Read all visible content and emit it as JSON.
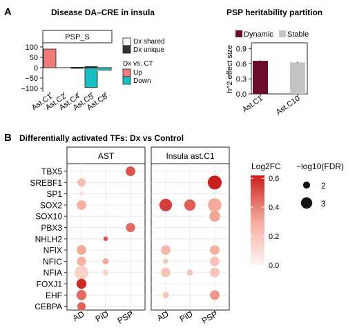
{
  "panel_labels": [
    "A",
    "B"
  ],
  "chart_data": [
    {
      "type": "bar",
      "title": "Disease DA–CRE in insula",
      "strip": "PSP_S",
      "categories": [
        "Ast.C1",
        "Ast.C2",
        "Ast.C4",
        "Ast.C5",
        "Ast.C8"
      ],
      "series": [
        {
          "name": "Up",
          "values": [
            90,
            0,
            2,
            5,
            0
          ]
        },
        {
          "name": "Down",
          "values": [
            0,
            0,
            -3,
            -95,
            -12
          ]
        }
      ],
      "ylim": [
        -110,
        110
      ],
      "yticks": [
        100,
        50,
        0,
        -50,
        -100
      ],
      "ytick_labels": [
        "100",
        "50",
        "0",
        "−50",
        "−100"
      ],
      "legend_alpha": {
        "items": [
          "Dx shared",
          "Dx unique"
        ]
      },
      "legend_fill": {
        "title": "Dx vs. CT",
        "items": [
          "Up",
          "Down"
        ]
      },
      "colors": {
        "Up": "#f07b78",
        "Down": "#17bfc4",
        "dark": "#333333"
      }
    },
    {
      "type": "bar",
      "title": "PSP heritability partition",
      "categories": [
        "Ast.C1",
        "Ast.C10"
      ],
      "series": [
        {
          "name": "Dynamic",
          "values": [
            0.66,
            0.0
          ]
        },
        {
          "name": "Stable",
          "values": [
            0.0,
            0.63
          ]
        }
      ],
      "errors": [
        0.015,
        0.015
      ],
      "ylabel": "h^2 effect size",
      "yticks": [
        0.0,
        0.3,
        0.6,
        0.9
      ],
      "ytick_labels": [
        "0.0",
        "0.3",
        "0.6",
        "0.9"
      ],
      "ylim": [
        0,
        1.02
      ],
      "legend": [
        "Dynamic",
        "Stable"
      ],
      "colors": {
        "Dynamic": "#6b0d2a",
        "Stable": "#c4c4c4"
      }
    },
    {
      "type": "scatter",
      "title": "Differentially activated TFs: Dx vs Control",
      "facets": [
        "AST",
        "Insula ast.C1"
      ],
      "x_categories": [
        "AD",
        "PiD",
        "PSP"
      ],
      "y_categories": [
        "TBX5",
        "SREBF1",
        "SP1",
        "SOX2",
        "SOX10",
        "PBX3",
        "NHLH2",
        "NFIX",
        "NFIC",
        "NFIA",
        "FOXJ1",
        "EHF",
        "CEBPA"
      ],
      "color_legend": {
        "title": "Log2FC",
        "ticks": [
          0.6,
          0.4,
          0.2,
          0.0
        ],
        "tick_labels": [
          "0.6",
          "0.4",
          "0.2",
          "0.0"
        ],
        "range": [
          0,
          0.62
        ]
      },
      "size_legend": {
        "title": "−log10(FDR)",
        "items": [
          2,
          3
        ]
      },
      "points": [
        {
          "facet": "AST",
          "x": "PSP",
          "y": "TBX5",
          "log2fc": 0.5,
          "nlog10fdr": 2.6
        },
        {
          "facet": "AST",
          "x": "AD",
          "y": "SREBF1",
          "log2fc": 0.22,
          "nlog10fdr": 2.3
        },
        {
          "facet": "AST",
          "x": "AD",
          "y": "SP1",
          "log2fc": 0.08,
          "nlog10fdr": 1.4
        },
        {
          "facet": "AST",
          "x": "AD",
          "y": "SOX2",
          "log2fc": 0.28,
          "nlog10fdr": 2.6
        },
        {
          "facet": "AST",
          "x": "PSP",
          "y": "PBX3",
          "log2fc": 0.45,
          "nlog10fdr": 2.5
        },
        {
          "facet": "AST",
          "x": "PiD",
          "y": "NHLH2",
          "log2fc": 0.5,
          "nlog10fdr": 1.4
        },
        {
          "facet": "AST",
          "x": "AD",
          "y": "NFIX",
          "log2fc": 0.3,
          "nlog10fdr": 2.6
        },
        {
          "facet": "AST",
          "x": "AD",
          "y": "NFIC",
          "log2fc": 0.28,
          "nlog10fdr": 2.5
        },
        {
          "facet": "AST",
          "x": "PiD",
          "y": "NFIC",
          "log2fc": 0.3,
          "nlog10fdr": 1.8
        },
        {
          "facet": "AST",
          "x": "AD",
          "y": "NFIA",
          "log2fc": 0.15,
          "nlog10fdr": 3.6
        },
        {
          "facet": "AST",
          "x": "PiD",
          "y": "NFIA",
          "log2fc": 0.15,
          "nlog10fdr": 1.7
        },
        {
          "facet": "AST",
          "x": "AD",
          "y": "FOXJ1",
          "log2fc": 0.6,
          "nlog10fdr": 2.7
        },
        {
          "facet": "AST",
          "x": "AD",
          "y": "EHF",
          "log2fc": 0.45,
          "nlog10fdr": 2.7
        },
        {
          "facet": "AST",
          "x": "AD",
          "y": "CEBPA",
          "log2fc": 0.47,
          "nlog10fdr": 2.3
        },
        {
          "facet": "Insula ast.C1",
          "x": "PSP",
          "y": "SREBF1",
          "log2fc": 0.62,
          "nlog10fdr": 3.6
        },
        {
          "facet": "Insula ast.C1",
          "x": "AD",
          "y": "SOX2",
          "log2fc": 0.55,
          "nlog10fdr": 3.3
        },
        {
          "facet": "Insula ast.C1",
          "x": "PiD",
          "y": "SOX2",
          "log2fc": 0.48,
          "nlog10fdr": 3.0
        },
        {
          "facet": "Insula ast.C1",
          "x": "PSP",
          "y": "SOX2",
          "log2fc": 0.3,
          "nlog10fdr": 3.5
        },
        {
          "facet": "Insula ast.C1",
          "x": "PSP",
          "y": "SOX10",
          "log2fc": 0.32,
          "nlog10fdr": 2.9
        },
        {
          "facet": "Insula ast.C1",
          "x": "AD",
          "y": "NFIX",
          "log2fc": 0.25,
          "nlog10fdr": 2.6
        },
        {
          "facet": "Insula ast.C1",
          "x": "PSP",
          "y": "NFIX",
          "log2fc": 0.28,
          "nlog10fdr": 2.6
        },
        {
          "facet": "Insula ast.C1",
          "x": "AD",
          "y": "NFIC",
          "log2fc": 0.2,
          "nlog10fdr": 1.6
        },
        {
          "facet": "Insula ast.C1",
          "x": "PSP",
          "y": "NFIC",
          "log2fc": 0.2,
          "nlog10fdr": 2.6
        },
        {
          "facet": "Insula ast.C1",
          "x": "AD",
          "y": "NFIA",
          "log2fc": 0.2,
          "nlog10fdr": 2.6
        },
        {
          "facet": "Insula ast.C1",
          "x": "PiD",
          "y": "NFIA",
          "log2fc": 0.2,
          "nlog10fdr": 1.8
        },
        {
          "facet": "Insula ast.C1",
          "x": "PSP",
          "y": "NFIA",
          "log2fc": 0.2,
          "nlog10fdr": 2.6
        },
        {
          "facet": "Insula ast.C1",
          "x": "AD",
          "y": "EHF",
          "log2fc": 0.2,
          "nlog10fdr": 1.8
        },
        {
          "facet": "Insula ast.C1",
          "x": "PSP",
          "y": "EHF",
          "log2fc": 0.35,
          "nlog10fdr": 2.6
        }
      ]
    }
  ]
}
